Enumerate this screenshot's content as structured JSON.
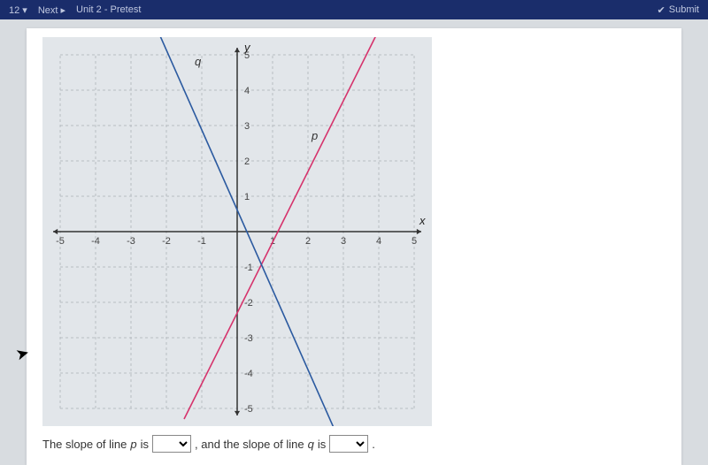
{
  "topbar": {
    "counter": "12",
    "next": "Next",
    "title": "Unit 2 - Pretest",
    "submit": "Submit"
  },
  "graph": {
    "background": "#e2e6ea",
    "grid_color": "#b8bdc2",
    "axis_color": "#333333",
    "tick_font_size": 11,
    "label_font_size": 13,
    "x_label": "x",
    "y_label": "y",
    "xlim": [
      -5,
      5
    ],
    "ylim": [
      -5,
      5
    ],
    "tick_step": 1,
    "x_ticks": [
      -5,
      -4,
      -3,
      -2,
      -1,
      1,
      2,
      3,
      4,
      5
    ],
    "y_ticks": [
      -5,
      -4,
      -3,
      -2,
      -1,
      1,
      2,
      3,
      4,
      5
    ],
    "lines": [
      {
        "name": "p",
        "color": "#d6336c",
        "width": 1.6,
        "label_pos": [
          2.1,
          2.6
        ],
        "points": [
          [
            -1.5,
            -5.3
          ],
          [
            4.0,
            5.7
          ]
        ]
      },
      {
        "name": "q",
        "color": "#2b5aa0",
        "width": 1.6,
        "label_pos": [
          -1.2,
          4.7
        ],
        "points": [
          [
            -2.25,
            5.7
          ],
          [
            2.75,
            -5.6
          ]
        ]
      }
    ]
  },
  "question": {
    "part1": "The slope of line ",
    "var1": "p",
    "part2": " is ",
    "part3": " , and the slope of line ",
    "var2": "q",
    "part4": " is ",
    "part5": " ."
  }
}
